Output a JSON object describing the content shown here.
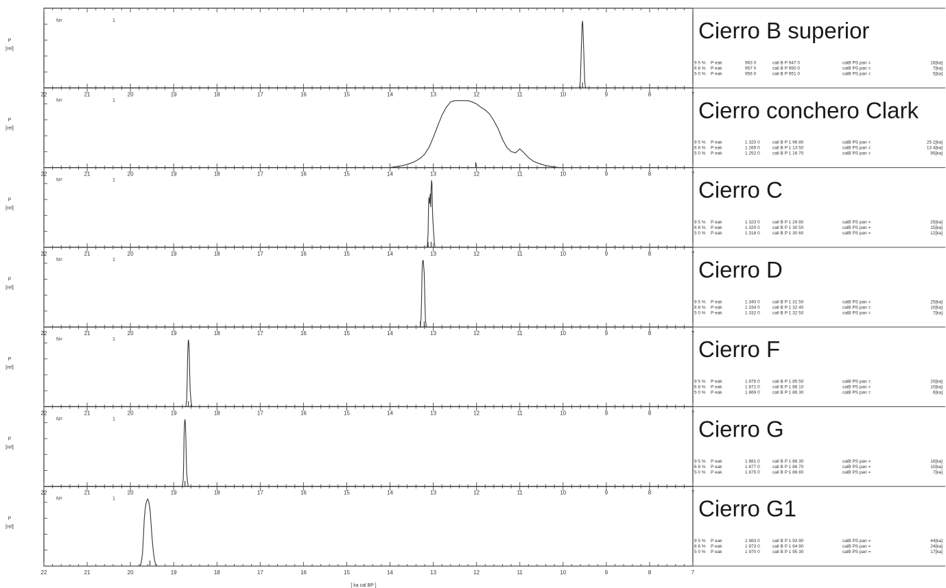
{
  "chart_data": {
    "type": "line",
    "xlabel": "[ ka cal BP ]",
    "x_tick_labels": [
      "22",
      "21",
      "20",
      "19",
      "18",
      "17",
      "16",
      "15",
      "14",
      "13",
      "12",
      "11",
      "10",
      "9",
      "8",
      "7"
    ],
    "xlim": [
      22,
      7
    ],
    "y_axis_label_lines": [
      "P",
      "[rel]"
    ],
    "n_label": "N=",
    "n_value": "1",
    "panels": [
      {
        "title": "Cierro B superior",
        "n": "1",
        "stats": [
          {
            "level": "9 5 %",
            "label": "P eak",
            "bp": "963 0",
            "calbp": "call B  P  947 0",
            "span_label": "calB PS pan =",
            "span": "16[ka]"
          },
          {
            "level": "6 8 %",
            "label": "P eak",
            "bp": "957 0",
            "calbp": "call B  P  950 0",
            "span_label": "calB PS pan =",
            "span": "7[ka]"
          },
          {
            "level": "5 0 %",
            "label": "P eak",
            "bp": "956 0",
            "calbp": "call B  P  951 0",
            "span_label": "calB PS pan =",
            "span": "5[ka]"
          }
        ],
        "curve": {
          "x": [
            9.62,
            9.6,
            9.58,
            9.56,
            9.55,
            9.54,
            9.52,
            9.5,
            9.48
          ],
          "y": [
            0.0,
            0.1,
            0.55,
            0.95,
            1.0,
            0.9,
            0.5,
            0.1,
            0.0
          ]
        },
        "markers": [
          9.55
        ]
      },
      {
        "title": "Cierro conchero Clark",
        "n": "1",
        "stats": [
          {
            "level": "9 5 %",
            "label": "P eak",
            "bp": "1 320 0",
            "calbp": "call B  P 1 96 80",
            "span_label": "calB PS pan =",
            "span": "25 2[ka]"
          },
          {
            "level": "6 8 %",
            "label": "P eak",
            "bp": "1 269 0",
            "calbp": "call B  P 1 13 50",
            "span_label": "calB PS pan =",
            "span": "13 4[ka]"
          },
          {
            "level": "5 0 %",
            "label": "P eak",
            "bp": "1 252 0",
            "calbp": "call B  P 1 16 70",
            "span_label": "calB PS pan =",
            "span": "95[ka]"
          }
        ],
        "curve": {
          "x": [
            14.0,
            13.9,
            13.8,
            13.7,
            13.6,
            13.5,
            13.4,
            13.3,
            13.2,
            13.1,
            13.0,
            12.9,
            12.8,
            12.7,
            12.6,
            12.5,
            12.4,
            12.3,
            12.2,
            12.1,
            12.0,
            11.9,
            11.8,
            11.7,
            11.6,
            11.5,
            11.4,
            11.3,
            11.2,
            11.1,
            11.0,
            10.9,
            10.8,
            10.7,
            10.6,
            10.5,
            10.4,
            10.3,
            10.2,
            10.1,
            10.0
          ],
          "y": [
            0.0,
            0.01,
            0.02,
            0.03,
            0.05,
            0.07,
            0.1,
            0.14,
            0.2,
            0.3,
            0.45,
            0.62,
            0.78,
            0.9,
            0.98,
            1.0,
            1.0,
            1.0,
            1.0,
            0.98,
            0.95,
            0.9,
            0.86,
            0.8,
            0.7,
            0.58,
            0.42,
            0.3,
            0.24,
            0.22,
            0.28,
            0.22,
            0.15,
            0.1,
            0.07,
            0.05,
            0.03,
            0.02,
            0.01,
            0.0,
            0.0
          ]
        },
        "markers": [
          12.02
        ]
      },
      {
        "title": "Cierro C",
        "n": "1",
        "stats": [
          {
            "level": "9 5 %",
            "label": "P eak",
            "bp": "1 323 0",
            "calbp": "call B  P 1 29 80",
            "span_label": "calB PS pan =",
            "span": "25[ka]"
          },
          {
            "level": "6 8 %",
            "label": "P eak",
            "bp": "1 320 0",
            "calbp": "call B  P 1 30 50",
            "span_label": "calB PS pan =",
            "span": "15[ka]"
          },
          {
            "level": "5 0 %",
            "label": "P eak",
            "bp": "1 318 0",
            "calbp": "call B  P 1 30 60",
            "span_label": "calB PS pan =",
            "span": "12[ka]"
          }
        ],
        "curve": {
          "x": [
            13.14,
            13.12,
            13.11,
            13.1,
            13.09,
            13.08,
            13.07,
            13.06,
            13.05,
            13.04,
            13.03,
            13.02,
            13.01,
            13.0,
            12.98,
            12.96
          ],
          "y": [
            0.0,
            0.2,
            0.6,
            0.75,
            0.65,
            0.7,
            0.8,
            0.6,
            0.85,
            1.0,
            0.95,
            0.6,
            0.4,
            0.3,
            0.1,
            0.0
          ]
        },
        "markers": [
          13.12,
          13.05
        ]
      },
      {
        "title": "Cierro D",
        "n": "1",
        "stats": [
          {
            "level": "9 5 %",
            "label": "P eak",
            "bp": "1 340 0",
            "calbp": "call B  P 1 31 50",
            "span_label": "calB PS pan =",
            "span": "25[ka]"
          },
          {
            "level": "6 8 %",
            "label": "P eak",
            "bp": "1 334 0",
            "calbp": "call B  P 1 32 40",
            "span_label": "calB PS pan =",
            "span": "10[ka]"
          },
          {
            "level": "5 0 %",
            "label": "P eak",
            "bp": "1 332 0",
            "calbp": "call B  P 1 32 50",
            "span_label": "calB PS pan =",
            "span": "7[ka]"
          }
        ],
        "curve": {
          "x": [
            13.3,
            13.28,
            13.27,
            13.26,
            13.25,
            13.24,
            13.23,
            13.22,
            13.21,
            13.2,
            13.19,
            13.18,
            13.16
          ],
          "y": [
            0.0,
            0.15,
            0.45,
            0.8,
            0.95,
            1.0,
            0.98,
            0.9,
            0.8,
            0.55,
            0.3,
            0.1,
            0.0
          ]
        },
        "markers": [
          13.3,
          13.21
        ]
      },
      {
        "title": "Cierro F",
        "n": "1",
        "stats": [
          {
            "level": "9 5 %",
            "label": "P eak",
            "bp": "1 875 0",
            "calbp": "call B  P 1 85 50",
            "span_label": "calB PS pan =",
            "span": "20[ka]"
          },
          {
            "level": "6 8 %",
            "label": "P eak",
            "bp": "1 871 0",
            "calbp": "call B  P 1 86 10",
            "span_label": "calB PS pan =",
            "span": "10[ka]"
          },
          {
            "level": "5 0 %",
            "label": "P eak",
            "bp": "1 869 0",
            "calbp": "call B  P 1 86 30",
            "span_label": "calB PS pan =",
            "span": "6[ka]"
          }
        ],
        "curve": {
          "x": [
            18.72,
            18.7,
            18.69,
            18.68,
            18.67,
            18.66,
            18.65,
            18.64,
            18.63,
            18.62,
            18.6,
            18.58
          ],
          "y": [
            0.0,
            0.1,
            0.35,
            0.7,
            0.9,
            1.0,
            0.95,
            0.8,
            0.5,
            0.25,
            0.08,
            0.0
          ]
        },
        "markers": [
          18.66
        ]
      },
      {
        "title": "Cierro G",
        "n": "1",
        "stats": [
          {
            "level": "9 5 %",
            "label": "P eak",
            "bp": "1 881 0",
            "calbp": "call B  P 1 86 30",
            "span_label": "calB PS pan =",
            "span": "18[ka]"
          },
          {
            "level": "6 8 %",
            "label": "P eak",
            "bp": "1 877 0",
            "calbp": "call B  P 1 86 70",
            "span_label": "calB PS pan =",
            "span": "10[ka]"
          },
          {
            "level": "5 0 %",
            "label": "P eak",
            "bp": "1 875 0",
            "calbp": "call B  P 1 86 80",
            "span_label": "calB PS pan =",
            "span": "7[ka]"
          }
        ],
        "curve": {
          "x": [
            18.8,
            18.78,
            18.77,
            18.76,
            18.75,
            18.74,
            18.73,
            18.72,
            18.71,
            18.7,
            18.68,
            18.66
          ],
          "y": [
            0.0,
            0.1,
            0.35,
            0.75,
            0.95,
            1.0,
            0.95,
            0.75,
            0.45,
            0.2,
            0.06,
            0.0
          ]
        },
        "markers": [
          18.74
        ]
      },
      {
        "title": "Cierro G1",
        "n": "1",
        "stats": [
          {
            "level": "9 5 %",
            "label": "P eak",
            "bp": "1 983 0",
            "calbp": "call B  P 1 93 90",
            "span_label": "calB PS pan =",
            "span": "44[ka]"
          },
          {
            "level": "6 8 %",
            "label": "P eak",
            "bp": "1 973 0",
            "calbp": "call B  P 1 94 90",
            "span_label": "calB PS pan =",
            "span": "24[ka]"
          },
          {
            "level": "5 0 %",
            "label": "P eak",
            "bp": "1 970 0",
            "calbp": "call B  P 1 95 30",
            "span_label": "calB PS pan =",
            "span": "17[ka]"
          }
        ],
        "curve": {
          "x": [
            19.78,
            19.75,
            19.72,
            19.7,
            19.68,
            19.66,
            19.64,
            19.62,
            19.6,
            19.58,
            19.56,
            19.54,
            19.52,
            19.5,
            19.48,
            19.46,
            19.44,
            19.42,
            19.4
          ],
          "y": [
            0.0,
            0.05,
            0.2,
            0.45,
            0.7,
            0.85,
            0.93,
            0.98,
            1.0,
            0.97,
            0.9,
            0.8,
            0.6,
            0.42,
            0.28,
            0.16,
            0.08,
            0.03,
            0.0
          ]
        },
        "markers": [
          19.55
        ]
      }
    ]
  }
}
